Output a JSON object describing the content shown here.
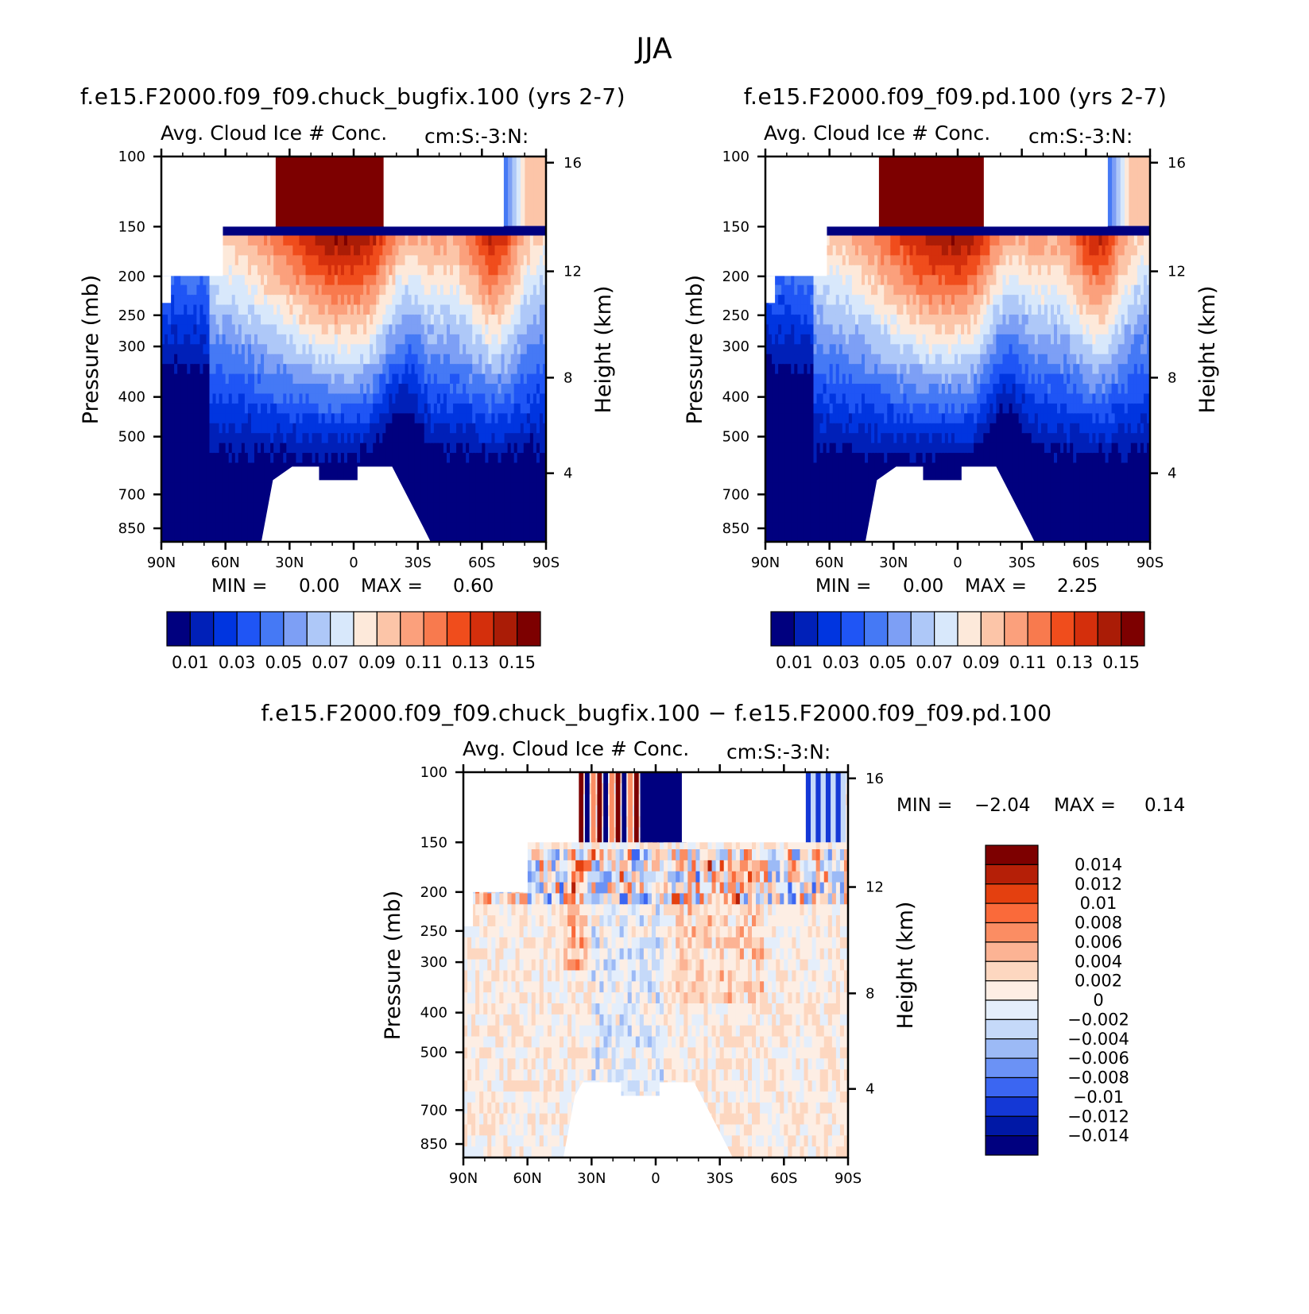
{
  "page_title": "JJA",
  "chart_data": [
    {
      "id": "panel1",
      "type": "heatmap",
      "title": "f.e15.F2000.f09_f09.chuck_bugfix.100 (yrs 2-7)",
      "subtitle_left": "Avg. Cloud Ice # Conc.",
      "subtitle_right": "cm:S:-3:N:",
      "x_ticks": [
        "90N",
        "60N",
        "30N",
        "0",
        "30S",
        "60S",
        "90S"
      ],
      "x_range": [
        90,
        -90
      ],
      "y_ticks": [
        "100",
        "150",
        "200",
        "250",
        "300",
        "400",
        "500",
        "700",
        "850"
      ],
      "y_ticks_right": [
        "16",
        "12",
        "8",
        "4"
      ],
      "ylabel": "Pressure (mb)",
      "ylabel_right": "Height (km)",
      "stats": {
        "min_label": "MIN =",
        "min": "0.00",
        "max_label": "MAX =",
        "max": "0.60"
      },
      "colorbar": {
        "levels": [
          "0.01",
          "0.03",
          "0.05",
          "0.07",
          "0.09",
          "0.11",
          "0.13",
          "0.15"
        ],
        "colors": [
          "#00007f",
          "#0020b8",
          "#0035e0",
          "#1f55f5",
          "#4579f5",
          "#7d9ff5",
          "#aec8f8",
          "#d8e8fb",
          "#fde9da",
          "#fcc5a8",
          "#fba07c",
          "#f87a4e",
          "#f04d1c",
          "#d42f0c",
          "#aa1c06",
          "#7d0000"
        ]
      }
    },
    {
      "id": "panel2",
      "type": "heatmap",
      "title": "f.e15.F2000.f09_f09.pd.100 (yrs 2-7)",
      "subtitle_left": "Avg. Cloud Ice # Conc.",
      "subtitle_right": "cm:S:-3:N:",
      "x_ticks": [
        "90N",
        "60N",
        "30N",
        "0",
        "30S",
        "60S",
        "90S"
      ],
      "x_range": [
        90,
        -90
      ],
      "y_ticks": [
        "100",
        "150",
        "200",
        "250",
        "300",
        "400",
        "500",
        "700",
        "850"
      ],
      "y_ticks_right": [
        "16",
        "12",
        "8",
        "4"
      ],
      "ylabel": "Pressure (mb)",
      "ylabel_right": "Height (km)",
      "stats": {
        "min_label": "MIN =",
        "min": "0.00",
        "max_label": "MAX =",
        "max": "2.25"
      },
      "colorbar": {
        "levels": [
          "0.01",
          "0.03",
          "0.05",
          "0.07",
          "0.09",
          "0.11",
          "0.13",
          "0.15"
        ],
        "colors": [
          "#00007f",
          "#0020b8",
          "#0035e0",
          "#1f55f5",
          "#4579f5",
          "#7d9ff5",
          "#aec8f8",
          "#d8e8fb",
          "#fde9da",
          "#fcc5a8",
          "#fba07c",
          "#f87a4e",
          "#f04d1c",
          "#d42f0c",
          "#aa1c06",
          "#7d0000"
        ]
      }
    },
    {
      "id": "panel3",
      "type": "heatmap",
      "title": "f.e15.F2000.f09_f09.chuck_bugfix.100 − f.e15.F2000.f09_f09.pd.100",
      "subtitle_left": "Avg. Cloud Ice # Conc.",
      "subtitle_right": "cm:S:-3:N:",
      "x_ticks": [
        "90N",
        "60N",
        "30N",
        "0",
        "30S",
        "60S",
        "90S"
      ],
      "x_range": [
        90,
        -90
      ],
      "y_ticks": [
        "100",
        "150",
        "200",
        "250",
        "300",
        "400",
        "500",
        "700",
        "850"
      ],
      "y_ticks_right": [
        "16",
        "12",
        "8",
        "4"
      ],
      "ylabel": "Pressure (mb)",
      "ylabel_right": "Height (km)",
      "stats": {
        "min_label": "MIN =",
        "min": "−2.04",
        "max_label": "MAX =",
        "max": "0.14"
      },
      "colorbar": {
        "levels": [
          "0.014",
          "0.012",
          "0.01",
          "0.008",
          "0.006",
          "0.004",
          "0.002",
          "0",
          "−0.002",
          "−0.004",
          "−0.006",
          "−0.008",
          "−0.01",
          "−0.012",
          "−0.014"
        ],
        "colors": [
          "#7d0000",
          "#b51f07",
          "#e4400f",
          "#fa6a3a",
          "#fb8d63",
          "#fcb394",
          "#fdd7c0",
          "#fdeee4",
          "#e4eefb",
          "#c5d9f9",
          "#9cbaf6",
          "#6b92f5",
          "#3b66f2",
          "#1438d6",
          "#0018a6",
          "#00007f"
        ]
      }
    }
  ]
}
